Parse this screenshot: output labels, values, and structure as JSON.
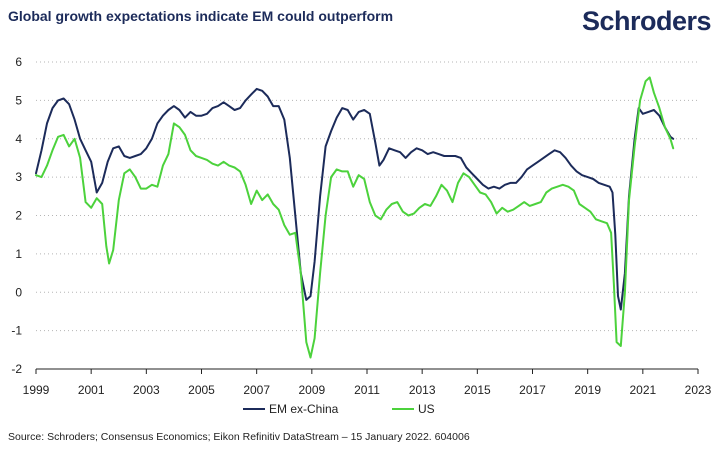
{
  "title": "Global growth expectations indicate EM could outperform",
  "brand": "Schroders",
  "source": "Source: Schroders; Consensus Economics; Eikon Refinitiv DataStream – 15 January 2022. 604006",
  "chart_data": {
    "type": "line",
    "title": "Global growth expectations indicate EM could outperform",
    "xlabel": "",
    "ylabel": "",
    "xlim": [
      1999,
      2023
    ],
    "ylim": [
      -2,
      6
    ],
    "x_ticks": [
      "1999",
      "2001",
      "2003",
      "2005",
      "2007",
      "2009",
      "2011",
      "2013",
      "2015",
      "2017",
      "2019",
      "2021",
      "2023"
    ],
    "y_ticks": [
      "6",
      "5",
      "4",
      "3",
      "2",
      "1",
      "0",
      "-1",
      "-2"
    ],
    "grid": "horizontal dotted",
    "legend": "bottom-center",
    "series": [
      {
        "name": "EM ex-China",
        "color": "#1c2b5a",
        "points": [
          [
            1999.0,
            3.1
          ],
          [
            1999.2,
            3.7
          ],
          [
            1999.4,
            4.4
          ],
          [
            1999.6,
            4.8
          ],
          [
            1999.8,
            5.0
          ],
          [
            2000.0,
            5.05
          ],
          [
            2000.2,
            4.9
          ],
          [
            2000.4,
            4.5
          ],
          [
            2000.6,
            4.0
          ],
          [
            2000.8,
            3.7
          ],
          [
            2001.0,
            3.4
          ],
          [
            2001.2,
            2.6
          ],
          [
            2001.4,
            2.85
          ],
          [
            2001.6,
            3.4
          ],
          [
            2001.8,
            3.75
          ],
          [
            2002.0,
            3.8
          ],
          [
            2002.2,
            3.55
          ],
          [
            2002.4,
            3.5
          ],
          [
            2002.6,
            3.55
          ],
          [
            2002.8,
            3.6
          ],
          [
            2003.0,
            3.75
          ],
          [
            2003.2,
            4.0
          ],
          [
            2003.4,
            4.4
          ],
          [
            2003.6,
            4.6
          ],
          [
            2003.8,
            4.75
          ],
          [
            2004.0,
            4.85
          ],
          [
            2004.2,
            4.75
          ],
          [
            2004.4,
            4.55
          ],
          [
            2004.6,
            4.7
          ],
          [
            2004.8,
            4.6
          ],
          [
            2005.0,
            4.6
          ],
          [
            2005.2,
            4.65
          ],
          [
            2005.4,
            4.8
          ],
          [
            2005.6,
            4.85
          ],
          [
            2005.8,
            4.95
          ],
          [
            2006.0,
            4.85
          ],
          [
            2006.2,
            4.75
          ],
          [
            2006.4,
            4.8
          ],
          [
            2006.6,
            5.0
          ],
          [
            2006.8,
            5.15
          ],
          [
            2007.0,
            5.3
          ],
          [
            2007.2,
            5.25
          ],
          [
            2007.4,
            5.1
          ],
          [
            2007.6,
            4.85
          ],
          [
            2007.8,
            4.85
          ],
          [
            2008.0,
            4.5
          ],
          [
            2008.2,
            3.5
          ],
          [
            2008.4,
            2.0
          ],
          [
            2008.6,
            0.5
          ],
          [
            2008.8,
            -0.2
          ],
          [
            2008.95,
            -0.1
          ],
          [
            2009.1,
            0.8
          ],
          [
            2009.3,
            2.5
          ],
          [
            2009.5,
            3.8
          ],
          [
            2009.7,
            4.2
          ],
          [
            2009.9,
            4.55
          ],
          [
            2010.1,
            4.8
          ],
          [
            2010.3,
            4.75
          ],
          [
            2010.5,
            4.5
          ],
          [
            2010.7,
            4.7
          ],
          [
            2010.9,
            4.75
          ],
          [
            2011.1,
            4.65
          ],
          [
            2011.3,
            3.9
          ],
          [
            2011.45,
            3.3
          ],
          [
            2011.6,
            3.45
          ],
          [
            2011.8,
            3.75
          ],
          [
            2012.0,
            3.7
          ],
          [
            2012.2,
            3.65
          ],
          [
            2012.4,
            3.5
          ],
          [
            2012.6,
            3.65
          ],
          [
            2012.8,
            3.75
          ],
          [
            2013.0,
            3.7
          ],
          [
            2013.2,
            3.6
          ],
          [
            2013.4,
            3.65
          ],
          [
            2013.6,
            3.6
          ],
          [
            2013.8,
            3.55
          ],
          [
            2014.0,
            3.55
          ],
          [
            2014.2,
            3.55
          ],
          [
            2014.4,
            3.5
          ],
          [
            2014.6,
            3.25
          ],
          [
            2014.8,
            3.1
          ],
          [
            2015.0,
            2.95
          ],
          [
            2015.2,
            2.8
          ],
          [
            2015.4,
            2.7
          ],
          [
            2015.6,
            2.75
          ],
          [
            2015.8,
            2.7
          ],
          [
            2016.0,
            2.8
          ],
          [
            2016.2,
            2.85
          ],
          [
            2016.4,
            2.85
          ],
          [
            2016.6,
            3.0
          ],
          [
            2016.8,
            3.2
          ],
          [
            2017.0,
            3.3
          ],
          [
            2017.2,
            3.4
          ],
          [
            2017.4,
            3.5
          ],
          [
            2017.6,
            3.6
          ],
          [
            2017.8,
            3.7
          ],
          [
            2018.0,
            3.65
          ],
          [
            2018.2,
            3.5
          ],
          [
            2018.4,
            3.3
          ],
          [
            2018.6,
            3.15
          ],
          [
            2018.8,
            3.05
          ],
          [
            2019.0,
            3.0
          ],
          [
            2019.2,
            2.95
          ],
          [
            2019.4,
            2.85
          ],
          [
            2019.6,
            2.8
          ],
          [
            2019.8,
            2.75
          ],
          [
            2019.9,
            2.6
          ],
          [
            2020.0,
            1.5
          ],
          [
            2020.1,
            -0.1
          ],
          [
            2020.2,
            -0.45
          ],
          [
            2020.35,
            0.5
          ],
          [
            2020.5,
            2.5
          ],
          [
            2020.7,
            4.0
          ],
          [
            2020.85,
            4.8
          ],
          [
            2021.0,
            4.65
          ],
          [
            2021.2,
            4.7
          ],
          [
            2021.4,
            4.75
          ],
          [
            2021.6,
            4.6
          ],
          [
            2021.8,
            4.3
          ],
          [
            2022.0,
            4.05
          ],
          [
            2022.1,
            4.0
          ]
        ]
      },
      {
        "name": "US",
        "color": "#4cd23c",
        "points": [
          [
            1999.0,
            3.05
          ],
          [
            1999.2,
            3.0
          ],
          [
            1999.4,
            3.3
          ],
          [
            1999.6,
            3.7
          ],
          [
            1999.8,
            4.05
          ],
          [
            2000.0,
            4.1
          ],
          [
            2000.2,
            3.8
          ],
          [
            2000.4,
            4.0
          ],
          [
            2000.6,
            3.5
          ],
          [
            2000.8,
            2.35
          ],
          [
            2001.0,
            2.2
          ],
          [
            2001.2,
            2.45
          ],
          [
            2001.4,
            2.3
          ],
          [
            2001.55,
            1.2
          ],
          [
            2001.65,
            0.75
          ],
          [
            2001.8,
            1.1
          ],
          [
            2002.0,
            2.4
          ],
          [
            2002.2,
            3.1
          ],
          [
            2002.4,
            3.2
          ],
          [
            2002.6,
            3.0
          ],
          [
            2002.8,
            2.7
          ],
          [
            2003.0,
            2.7
          ],
          [
            2003.2,
            2.8
          ],
          [
            2003.4,
            2.75
          ],
          [
            2003.6,
            3.3
          ],
          [
            2003.8,
            3.6
          ],
          [
            2004.0,
            4.4
          ],
          [
            2004.2,
            4.3
          ],
          [
            2004.4,
            4.1
          ],
          [
            2004.6,
            3.7
          ],
          [
            2004.8,
            3.55
          ],
          [
            2005.0,
            3.5
          ],
          [
            2005.2,
            3.45
          ],
          [
            2005.4,
            3.35
          ],
          [
            2005.6,
            3.3
          ],
          [
            2005.8,
            3.4
          ],
          [
            2006.0,
            3.3
          ],
          [
            2006.2,
            3.25
          ],
          [
            2006.4,
            3.15
          ],
          [
            2006.6,
            2.8
          ],
          [
            2006.8,
            2.3
          ],
          [
            2007.0,
            2.65
          ],
          [
            2007.2,
            2.4
          ],
          [
            2007.4,
            2.55
          ],
          [
            2007.6,
            2.3
          ],
          [
            2007.8,
            2.15
          ],
          [
            2008.0,
            1.75
          ],
          [
            2008.2,
            1.5
          ],
          [
            2008.4,
            1.55
          ],
          [
            2008.6,
            0.5
          ],
          [
            2008.8,
            -1.3
          ],
          [
            2008.95,
            -1.7
          ],
          [
            2009.1,
            -1.2
          ],
          [
            2009.3,
            0.5
          ],
          [
            2009.5,
            2.0
          ],
          [
            2009.7,
            3.0
          ],
          [
            2009.9,
            3.2
          ],
          [
            2010.1,
            3.15
          ],
          [
            2010.3,
            3.15
          ],
          [
            2010.5,
            2.75
          ],
          [
            2010.7,
            3.05
          ],
          [
            2010.9,
            2.95
          ],
          [
            2011.1,
            2.35
          ],
          [
            2011.3,
            2.0
          ],
          [
            2011.5,
            1.9
          ],
          [
            2011.7,
            2.15
          ],
          [
            2011.9,
            2.3
          ],
          [
            2012.1,
            2.35
          ],
          [
            2012.3,
            2.1
          ],
          [
            2012.5,
            2.0
          ],
          [
            2012.7,
            2.05
          ],
          [
            2012.9,
            2.2
          ],
          [
            2013.1,
            2.3
          ],
          [
            2013.3,
            2.25
          ],
          [
            2013.5,
            2.5
          ],
          [
            2013.7,
            2.8
          ],
          [
            2013.9,
            2.65
          ],
          [
            2014.1,
            2.35
          ],
          [
            2014.3,
            2.85
          ],
          [
            2014.5,
            3.1
          ],
          [
            2014.7,
            3.0
          ],
          [
            2014.9,
            2.8
          ],
          [
            2015.1,
            2.6
          ],
          [
            2015.3,
            2.55
          ],
          [
            2015.5,
            2.35
          ],
          [
            2015.7,
            2.05
          ],
          [
            2015.9,
            2.2
          ],
          [
            2016.1,
            2.1
          ],
          [
            2016.3,
            2.15
          ],
          [
            2016.5,
            2.25
          ],
          [
            2016.7,
            2.35
          ],
          [
            2016.9,
            2.25
          ],
          [
            2017.1,
            2.3
          ],
          [
            2017.3,
            2.35
          ],
          [
            2017.5,
            2.6
          ],
          [
            2017.7,
            2.7
          ],
          [
            2017.9,
            2.75
          ],
          [
            2018.1,
            2.8
          ],
          [
            2018.3,
            2.75
          ],
          [
            2018.5,
            2.65
          ],
          [
            2018.7,
            2.3
          ],
          [
            2018.9,
            2.2
          ],
          [
            2019.1,
            2.1
          ],
          [
            2019.3,
            1.9
          ],
          [
            2019.5,
            1.85
          ],
          [
            2019.7,
            1.8
          ],
          [
            2019.85,
            1.55
          ],
          [
            2019.95,
            0.2
          ],
          [
            2020.05,
            -1.3
          ],
          [
            2020.2,
            -1.4
          ],
          [
            2020.35,
            0.0
          ],
          [
            2020.5,
            2.4
          ],
          [
            2020.7,
            3.8
          ],
          [
            2020.9,
            5.0
          ],
          [
            2021.1,
            5.5
          ],
          [
            2021.25,
            5.6
          ],
          [
            2021.4,
            5.2
          ],
          [
            2021.6,
            4.8
          ],
          [
            2021.8,
            4.3
          ],
          [
            2022.0,
            4.0
          ],
          [
            2022.1,
            3.75
          ]
        ]
      }
    ]
  }
}
